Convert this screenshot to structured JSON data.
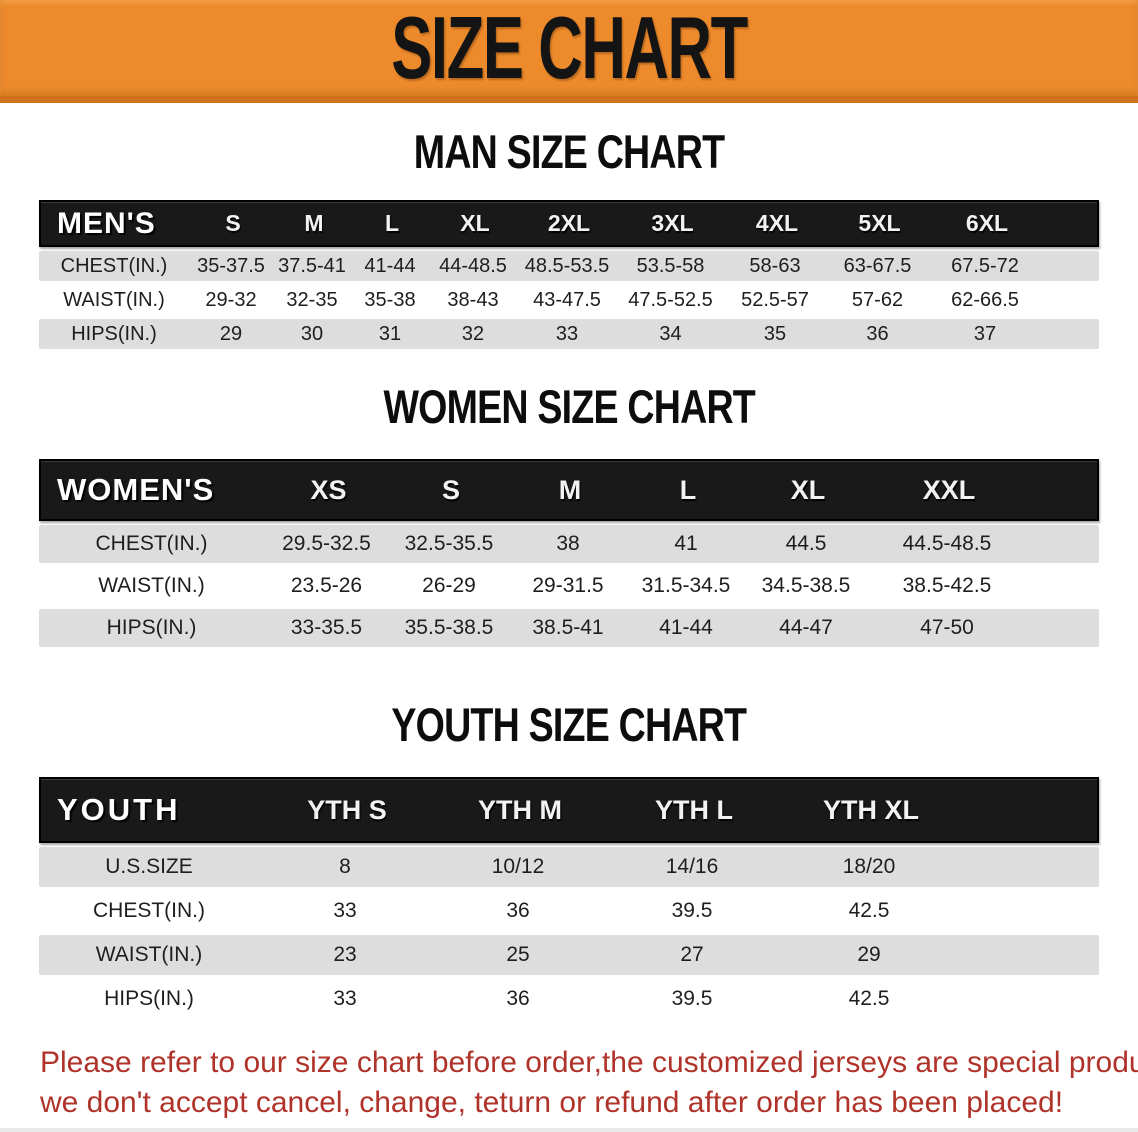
{
  "banner": {
    "title": "SIZE CHART"
  },
  "colors": {
    "banner_orange": "#EC8A2C",
    "banner_edge": "#CE711F",
    "header_black": "#191919",
    "row_gray": "#DDDDDD",
    "footnote_red": "#B0332A"
  },
  "tables": [
    {
      "heading": "MAN SIZE CHART",
      "label": "MEN'S",
      "sizes": [
        "S",
        "M",
        "L",
        "XL",
        "2XL",
        "3XL",
        "4XL",
        "5XL",
        "6XL"
      ],
      "rows": [
        {
          "label": "CHEST(IN.)",
          "values": [
            "35-37.5",
            "37.5-41",
            "41-44",
            "44-48.5",
            "48.5-53.5",
            "53.5-58",
            "58-63",
            "63-67.5",
            "67.5-72"
          ]
        },
        {
          "label": "WAIST(IN.)",
          "values": [
            "29-32",
            "32-35",
            "35-38",
            "38-43",
            "43-47.5",
            "47.5-52.5",
            "52.5-57",
            "57-62",
            "62-66.5"
          ]
        },
        {
          "label": "HIPS(IN.)",
          "values": [
            "29",
            "30",
            "31",
            "32",
            "33",
            "34",
            "35",
            "36",
            "37"
          ]
        }
      ]
    },
    {
      "heading": "WOMEN SIZE CHART",
      "label": "WOMEN'S",
      "sizes": [
        "XS",
        "S",
        "M",
        "L",
        "XL",
        "XXL"
      ],
      "rows": [
        {
          "label": "CHEST(IN.)",
          "values": [
            "29.5-32.5",
            "32.5-35.5",
            "38",
            "41",
            "44.5",
            "44.5-48.5"
          ]
        },
        {
          "label": "WAIST(IN.)",
          "values": [
            "23.5-26",
            "26-29",
            "29-31.5",
            "31.5-34.5",
            "34.5-38.5",
            "38.5-42.5"
          ]
        },
        {
          "label": "HIPS(IN.)",
          "values": [
            "33-35.5",
            "35.5-38.5",
            "38.5-41",
            "41-44",
            "44-47",
            "47-50"
          ]
        }
      ]
    },
    {
      "heading": "YOUTH SIZE CHART",
      "label": "YOUTH",
      "sizes": [
        "YTH S",
        "YTH M",
        "YTH L",
        "YTH XL"
      ],
      "rows": [
        {
          "label": "U.S.SIZE",
          "values": [
            "8",
            "10/12",
            "14/16",
            "18/20"
          ]
        },
        {
          "label": "CHEST(IN.)",
          "values": [
            "33",
            "36",
            "39.5",
            "42.5"
          ]
        },
        {
          "label": "WAIST(IN.)",
          "values": [
            "23",
            "25",
            "27",
            "29"
          ]
        },
        {
          "label": "HIPS(IN.)",
          "values": [
            "33",
            "36",
            "39.5",
            "42.5"
          ]
        }
      ]
    }
  ],
  "footnote": {
    "line1": "Please refer to our size chart before order,the customized jerseys are special products,",
    "line2": "we don't accept cancel, change, teturn or refund after order has been placed!"
  }
}
